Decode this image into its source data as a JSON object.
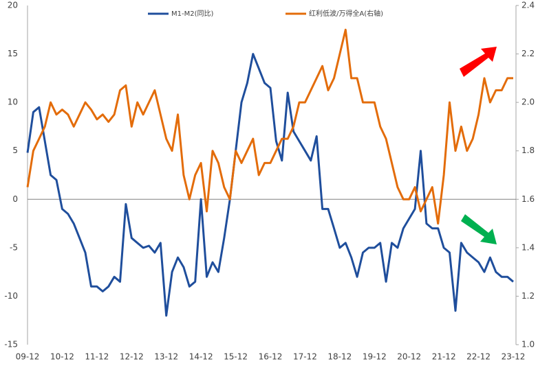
{
  "chart_data": {
    "type": "line",
    "categories": [
      "09-12",
      null,
      null,
      null,
      null,
      null,
      "10-12",
      null,
      null,
      null,
      null,
      null,
      "11-12",
      null,
      null,
      null,
      null,
      null,
      "12-12",
      null,
      null,
      null,
      null,
      null,
      "13-12",
      null,
      null,
      null,
      null,
      null,
      "14-12",
      null,
      null,
      null,
      null,
      null,
      "15-12",
      null,
      null,
      null,
      null,
      null,
      "16-12",
      null,
      null,
      null,
      null,
      null,
      "17-12",
      null,
      null,
      null,
      null,
      null,
      "18-12",
      null,
      null,
      null,
      null,
      null,
      "19-12",
      null,
      null,
      null,
      null,
      null,
      "20-12",
      null,
      null,
      null,
      null,
      null,
      "21-12",
      null,
      null,
      null,
      null,
      null,
      "22-12",
      null,
      null,
      null,
      null,
      null,
      "23-12"
    ],
    "series": [
      {
        "name": "M1-M2(同比)",
        "color": "#1f4e9c",
        "values": [
          4.8,
          9,
          9.5,
          6,
          2.5,
          2,
          -1,
          -1.5,
          -2.5,
          -4,
          -5.5,
          -9,
          -9,
          -9.5,
          -9,
          -8,
          -8.5,
          -0.5,
          -4,
          -4.5,
          -5,
          -4.8,
          -5.5,
          -4.5,
          -12,
          -7.5,
          -6,
          -7,
          -9,
          -8.5,
          0,
          -8,
          -6.5,
          -7.5,
          -4,
          0,
          5,
          10,
          12,
          15,
          13.5,
          12,
          11.5,
          6,
          4,
          11,
          7,
          6,
          5,
          4,
          6.5,
          -1,
          -1,
          -3,
          -5,
          -4.5,
          -6,
          -8,
          -5.5,
          -5,
          -5,
          -4.5,
          -8.5,
          -4.5,
          -5,
          -3,
          -2,
          -1,
          5,
          -2.5,
          -3,
          -3,
          -5,
          -5.5,
          -11.5,
          -4.5,
          -5.5,
          -6,
          -6.5,
          -7.5,
          -6,
          -7.5,
          -8,
          -8,
          -8.5
        ]
      },
      {
        "name": "红利低波/万得全A(右轴)",
        "color": "#e36c0a",
        "axis": "y2",
        "values": [
          1.65,
          1.8,
          1.85,
          1.9,
          2.0,
          1.95,
          1.97,
          1.95,
          1.9,
          1.95,
          2.0,
          1.97,
          1.93,
          1.95,
          1.92,
          1.95,
          2.05,
          2.07,
          1.9,
          2.0,
          1.95,
          2.0,
          2.05,
          1.95,
          1.85,
          1.8,
          1.95,
          1.7,
          1.6,
          1.7,
          1.75,
          1.55,
          1.8,
          1.75,
          1.65,
          1.6,
          1.8,
          1.75,
          1.8,
          1.85,
          1.7,
          1.75,
          1.75,
          1.8,
          1.85,
          1.85,
          1.9,
          2.0,
          2.0,
          2.05,
          2.1,
          2.15,
          2.05,
          2.1,
          2.2,
          2.3,
          2.1,
          2.1,
          2.0,
          2.0,
          2.0,
          1.9,
          1.85,
          1.75,
          1.65,
          1.6,
          1.6,
          1.65,
          1.55,
          1.6,
          1.65,
          1.5,
          1.7,
          2.0,
          1.8,
          1.9,
          1.8,
          1.85,
          1.95,
          2.1,
          2.0,
          2.05,
          2.05,
          2.1,
          2.1
        ]
      }
    ],
    "ylim": [
      -15,
      20
    ],
    "yticks": [
      -15,
      -10,
      -5,
      0,
      5,
      10,
      15,
      20
    ],
    "y2lim": [
      1.0,
      2.4
    ],
    "y2ticks": [
      {
        "value": 1.0,
        "label": "1.0"
      },
      1.2,
      1.4,
      1.6,
      1.8,
      {
        "value": 2.0,
        "label": "2.0"
      },
      2.2,
      2.4
    ],
    "legend": "top"
  }
}
